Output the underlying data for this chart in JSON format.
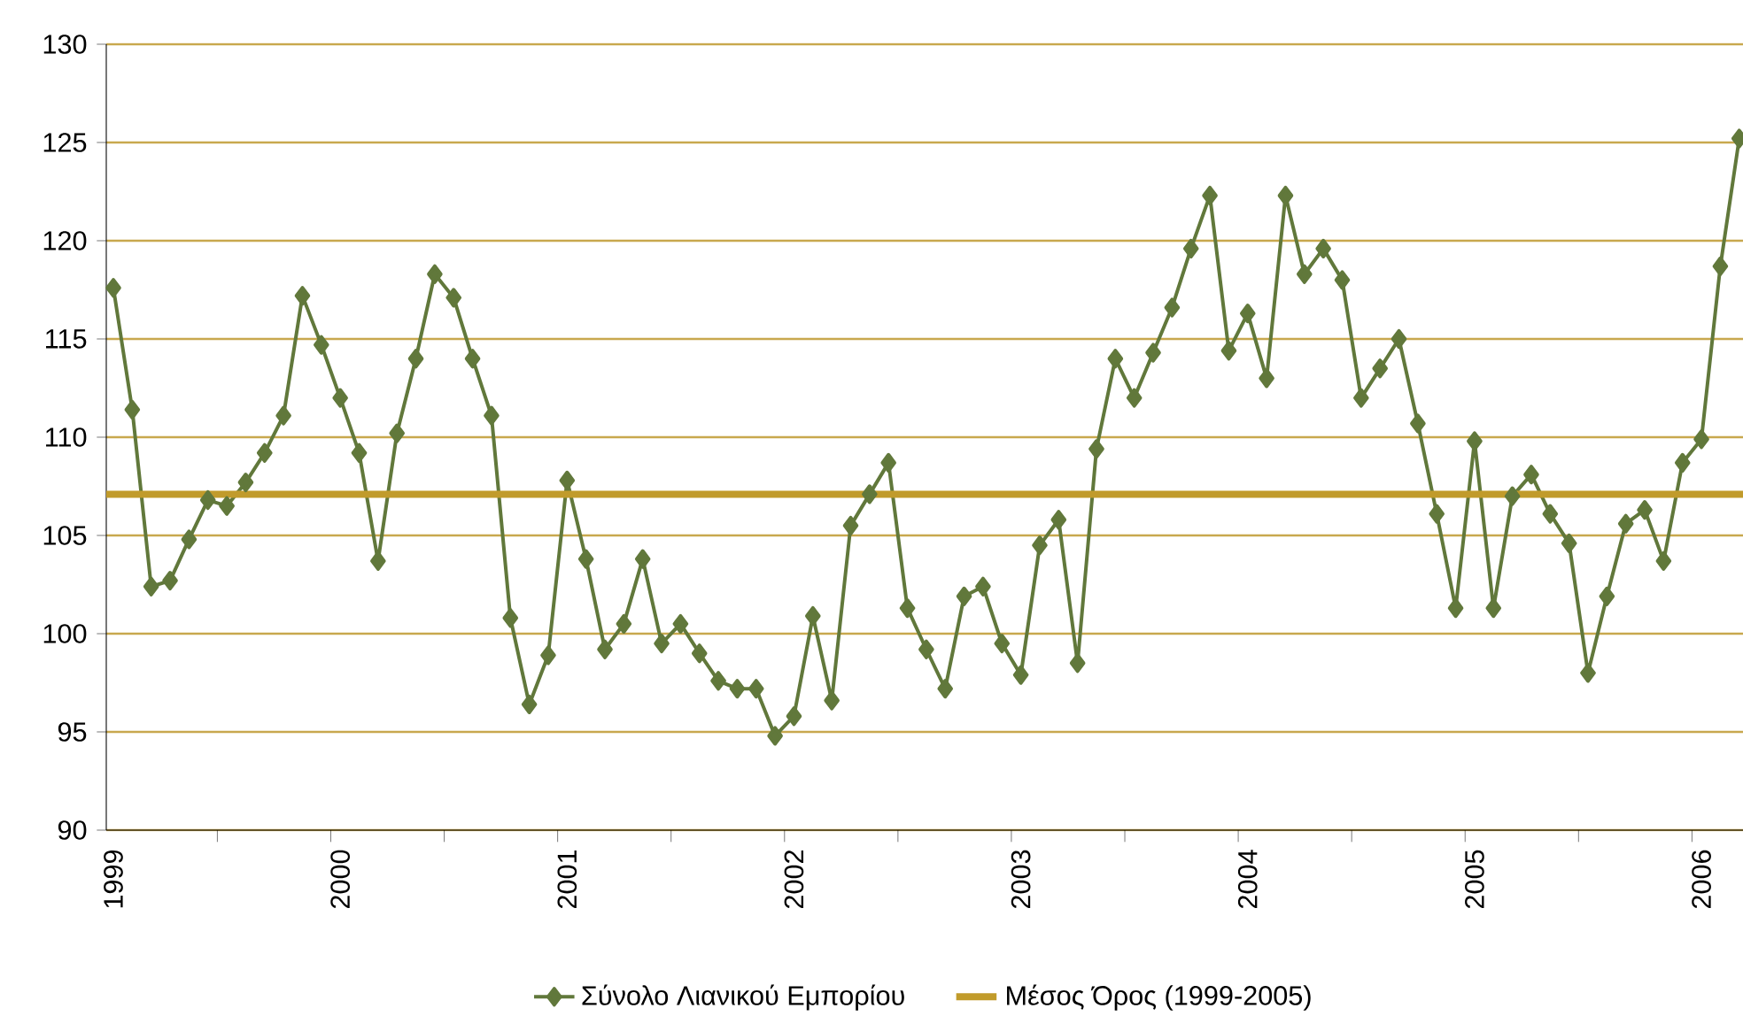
{
  "chart_data": {
    "type": "line",
    "categories": [
      "1999",
      null,
      null,
      null,
      null,
      null,
      null,
      null,
      null,
      null,
      null,
      null,
      "2000",
      null,
      null,
      null,
      null,
      null,
      null,
      null,
      null,
      null,
      null,
      null,
      "2001",
      null,
      null,
      null,
      null,
      null,
      null,
      null,
      null,
      null,
      null,
      null,
      "2002",
      null,
      null,
      null,
      null,
      null,
      null,
      null,
      null,
      null,
      null,
      null,
      "2003",
      null,
      null,
      null,
      null,
      null,
      null,
      null,
      null,
      null,
      null,
      null,
      "2004",
      null,
      null,
      null,
      null,
      null,
      null,
      null,
      null,
      null,
      null,
      null,
      "2005",
      null,
      null,
      null,
      null,
      null,
      null,
      null,
      null,
      null,
      null,
      null,
      "2006",
      null,
      null
    ],
    "series": [
      {
        "name": "Σύνολο Λιανικού Εμπορίου",
        "color": "#61783b",
        "values": [
          117.6,
          111.4,
          102.4,
          102.7,
          104.8,
          106.8,
          106.5,
          107.7,
          109.2,
          111.1,
          117.2,
          114.7,
          112.0,
          109.2,
          103.7,
          110.2,
          114.0,
          118.3,
          117.1,
          114.0,
          111.1,
          100.8,
          96.4,
          98.9,
          107.8,
          103.8,
          99.2,
          100.5,
          103.8,
          99.5,
          100.5,
          99.0,
          97.6,
          97.2,
          97.2,
          94.8,
          95.8,
          100.9,
          96.6,
          105.5,
          107.1,
          108.7,
          101.3,
          99.2,
          97.2,
          101.9,
          102.4,
          99.5,
          97.9,
          104.5,
          105.8,
          98.5,
          109.4,
          114.0,
          112.0,
          114.3,
          116.6,
          119.6,
          122.3,
          114.4,
          116.3,
          113.0,
          122.3,
          118.3,
          119.6,
          118.0,
          112.0,
          113.5,
          115.0,
          110.7,
          106.1,
          101.3,
          109.8,
          101.3,
          107.0,
          108.1,
          106.1,
          104.6,
          98.0,
          101.9,
          105.6,
          106.3,
          103.7,
          108.7,
          109.9,
          118.7,
          125.2
        ]
      }
    ],
    "ylim": [
      90,
      130
    ],
    "yticks": [
      90,
      95,
      100,
      105,
      110,
      115,
      120,
      125,
      130
    ],
    "grid": "y",
    "legend": "bottom",
    "marker": "diamond",
    "line_style": "solid",
    "ref_lines": [
      {
        "axis": "y",
        "value": 107.1,
        "label": "Μέσος Όρος (1999-2005)",
        "color": "#c19b2b"
      }
    ]
  }
}
